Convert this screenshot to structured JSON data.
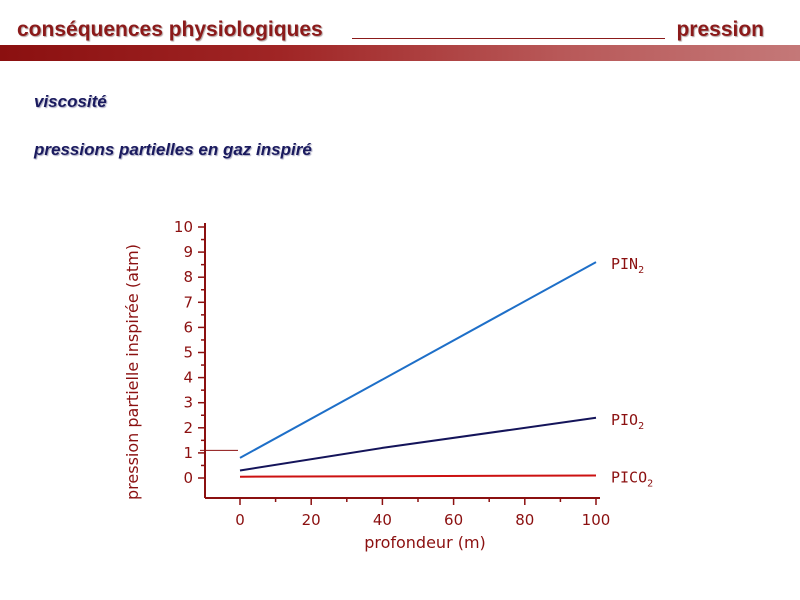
{
  "header": {
    "title_left": "conséquences physiologiques",
    "title_right": "pression"
  },
  "subtitles": [
    "viscosité",
    "pressions partielles en gaz inspiré"
  ],
  "colors": {
    "title": "#8b1a1a",
    "subtitle": "#1a1a5e",
    "axis": "#8b1010",
    "band": "#a02525"
  },
  "chart_data": {
    "type": "line",
    "xlabel": "profondeur (m)",
    "ylabel": "pression partielle inspirée (atm)",
    "xlim": [
      0,
      100
    ],
    "ylim": [
      0,
      10
    ],
    "x_ticks": [
      "0",
      "20",
      "40",
      "60",
      "80",
      "100"
    ],
    "y_ticks": [
      "0",
      "1",
      "2",
      "3",
      "4",
      "5",
      "6",
      "7",
      "8",
      "9",
      "10"
    ],
    "grid": false,
    "series": [
      {
        "name": "PIN",
        "name_sub": "2",
        "color": "#1e6fc8",
        "x": [
          0,
          100
        ],
        "y": [
          0.8,
          8.6
        ]
      },
      {
        "name": "PIO",
        "name_sub": "2",
        "color": "#14145a",
        "x": [
          0,
          40,
          100
        ],
        "y": [
          0.3,
          1.2,
          2.4
        ]
      },
      {
        "name": "PICO",
        "name_sub": "2",
        "color": "#cc1111",
        "x": [
          0,
          100
        ],
        "y": [
          0.05,
          0.1
        ]
      }
    ]
  }
}
